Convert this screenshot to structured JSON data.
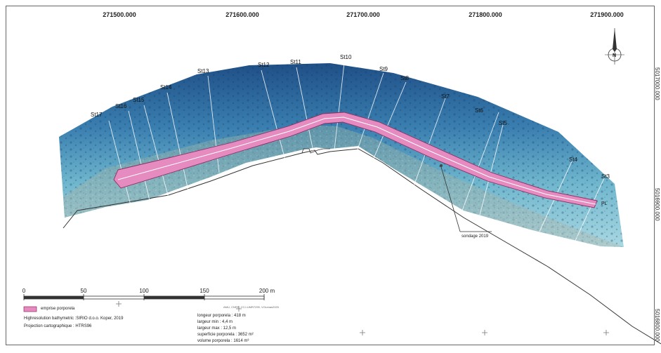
{
  "map": {
    "x_ticks": [
      "271500.000",
      "271600.000",
      "271700.000",
      "271800.000",
      "271900.000"
    ],
    "y_ticks": [
      "5017000.000",
      "5016900.000",
      "5016800.000"
    ],
    "north_label": "N",
    "stations": [
      "St3",
      "St4",
      "St5",
      "St6",
      "St7",
      "St8",
      "St9",
      "St10",
      "St11",
      "St12",
      "St13",
      "St14",
      "St15",
      "St16",
      "St17"
    ],
    "endpoint_label": "PL",
    "sounding_label": "sondage 2019"
  },
  "legend": {
    "scale_labels": [
      "0",
      "50",
      "100",
      "150",
      "200 m"
    ],
    "swatch_label": "emprise porporela",
    "source": "Highresolution bathymetric :SIRIO d.o.o. Koper, 2019",
    "projection": "Projection cartographique : HTRS96",
    "credit": "AMU, CNRS, CCJ-UMR7299, V.Dumas2020",
    "stats": [
      "longeur porporela : 418 m",
      "largeur min : 4,4 m",
      "largeur max : 12,5 m",
      "superficie porporela : 3652 m²",
      "volume porporela : 1614 m³"
    ]
  },
  "colors": {
    "deep_water": "#1f5b8f",
    "shallow_water": "#7cc0d4",
    "breakwater": "#d94f9a",
    "breakwater_fill": "#e58bc0"
  }
}
